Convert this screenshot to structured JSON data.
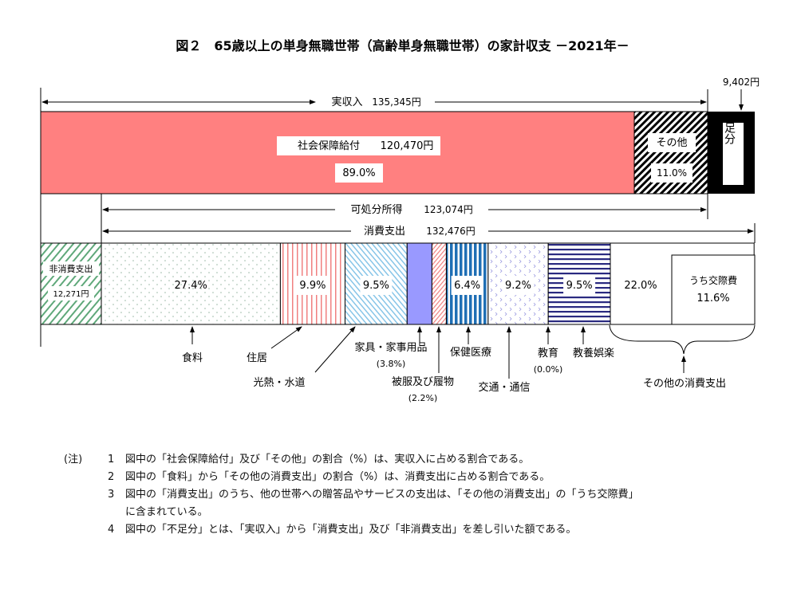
{
  "title": "図２　65歳以上の単身無職世帯（高齢単身無職世帯）の家計収支 －2021年－",
  "chart_data": {
    "type": "bar",
    "subtype": "stacked-horizontal-band",
    "income": {
      "label": "実収入",
      "total_label": "135,345円",
      "total": 135345,
      "segments": [
        {
          "name": "社会保障給付",
          "amount_label": "120,470円",
          "percent": 89.0,
          "percent_label": "89.0%",
          "color": "#ff8080",
          "pattern": "solid"
        },
        {
          "name": "その他",
          "percent": 11.0,
          "percent_label": "11.0%",
          "color": "#000000",
          "pattern": "diagonal-hatch"
        }
      ],
      "shortage": {
        "name": "不足分",
        "amount": 9402,
        "amount_label": "9,402円",
        "color": "#000000"
      }
    },
    "disposable_income": {
      "label": "可処分所得",
      "amount_label": "123,074円",
      "amount": 123074
    },
    "consumption": {
      "label": "消費支出",
      "amount_label": "132,476円",
      "amount": 132476,
      "non_consumption": {
        "name": "非消費支出",
        "amount_label": "12,271円",
        "amount": 12271,
        "color": "#5fa87a"
      },
      "segments": [
        {
          "name": "食料",
          "percent": 27.4,
          "percent_label": "27.4%",
          "color": "#9ab8a6",
          "pattern": "dots"
        },
        {
          "name": "住居",
          "percent": 9.9,
          "percent_label": "9.9%",
          "color": "#f08080",
          "pattern": "vertical-lines"
        },
        {
          "name": "光熱・水道",
          "percent": 9.5,
          "percent_label": "9.5%",
          "color": "#87c5e8",
          "pattern": "diagonal-lines"
        },
        {
          "name": "家具・家事用品",
          "percent": 3.8,
          "sublabel": "(3.8%)",
          "color": "#9999ff",
          "pattern": "solid"
        },
        {
          "name": "被服及び履物",
          "percent": 2.2,
          "sublabel": "(2.2%)",
          "color": "#f08080",
          "pattern": "diagonal-lines"
        },
        {
          "name": "保健医療",
          "percent": 6.4,
          "percent_label": "6.4%",
          "color": "#1f6fb5",
          "pattern": "vertical-bars"
        },
        {
          "name": "交通・通信",
          "percent": 9.2,
          "percent_label": "9.2%",
          "color": "#9a9ae0",
          "pattern": "chevrons"
        },
        {
          "name": "教育",
          "percent": 0.0,
          "sublabel": "(0.0%)",
          "color": "#000000",
          "pattern": "none"
        },
        {
          "name": "教養娯楽",
          "percent": 9.5,
          "percent_label": "9.5%",
          "color": "#2a2a80",
          "pattern": "horizontal-lines"
        },
        {
          "name": "その他の消費支出",
          "percent": 22.0,
          "percent_label": "22.0%",
          "color": "#ffffff",
          "pattern": "solid"
        }
      ],
      "sub_item": {
        "name": "うち交際費",
        "percent": 11.6,
        "percent_label": "11.6%"
      }
    }
  },
  "notes": {
    "heading": "(注)",
    "items": [
      {
        "num": "1",
        "lines": [
          "図中の「社会保障給付」及び「その他」の割合（%）は、実収入に占める割合である。"
        ]
      },
      {
        "num": "2",
        "lines": [
          "図中の「食料」から「その他の消費支出」の割合（%）は、消費支出に占める割合である。"
        ]
      },
      {
        "num": "3",
        "lines": [
          "図中の「消費支出」のうち、他の世帯への贈答品やサービスの支出は、「その他の消費支出」の「うち交際費」",
          "に含まれている。"
        ]
      },
      {
        "num": "4",
        "lines": [
          "図中の「不足分」とは、「実収入」から「消費支出」及び「非消費支出」を差し引いた額である。"
        ]
      }
    ]
  }
}
